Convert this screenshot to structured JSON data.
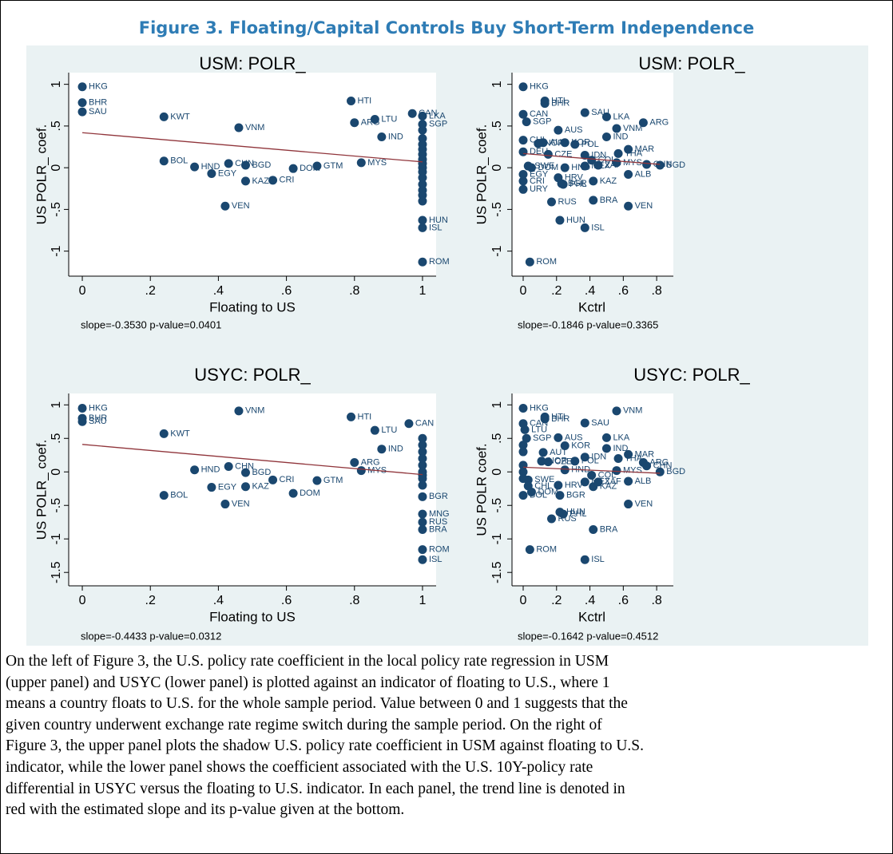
{
  "figure_title": "Figure 3. Floating/Capital Controls Buy Short-Term Independence",
  "caption": [
    "On the left of Figure 3, the U.S. policy rate coefficient in the local policy rate regression in USM",
    "(upper panel) and USYC (lower panel) is plotted against an indicator of floating to U.S., where 1",
    "means a country floats to U.S. for the whole sample period. Value between 0 and 1 suggests that the",
    "given country underwent exchange rate regime switch during the sample period. On the right of",
    "Figure 3, the upper panel plots the shadow U.S. policy rate coefficient in USM against floating to U.S.",
    "indicator, while the lower panel shows the coefficient associated with the U.S. 10Y-policy rate",
    "differential in USYC versus the floating to U.S. indicator. In each panel, the trend line is denoted in",
    "red with the estimated slope and its p-value given at the bottom."
  ],
  "chart_data": [
    {
      "type": "scatter",
      "title": "USM: POLR_",
      "xlabel": "Floating to US",
      "ylabel": "US POLR_ coef.",
      "note": "slope=-0.3530 p-value=0.0401",
      "color": "#1a476f",
      "trend_color": "#90353b",
      "xlim": [
        -0.04,
        1.04
      ],
      "ylim": [
        -1.3,
        1.14
      ],
      "xticks": [
        0,
        {
          "value": 0.2,
          "label": ".2"
        },
        {
          "value": 0.4,
          "label": ".4"
        },
        {
          "value": 0.6,
          "label": ".6"
        },
        {
          "value": 0.8,
          "label": ".8"
        },
        1
      ],
      "yticks": [
        1,
        {
          "value": 0.5,
          "label": ".5"
        },
        0,
        {
          "value": -0.5,
          "label": "-.5"
        },
        -1
      ],
      "x": [
        0,
        0,
        0,
        0.24,
        0.46,
        0.79,
        0.8,
        0.86,
        0.97,
        0.88,
        0.24,
        0.33,
        0.38,
        0.43,
        0.48,
        0.48,
        0.56,
        0.62,
        0.69,
        0.82,
        0.42,
        1,
        1,
        1,
        1,
        1,
        1,
        1,
        1,
        1,
        1,
        1,
        1,
        1,
        1,
        1,
        1,
        1,
        1,
        1
      ],
      "values": [
        0.97,
        0.78,
        0.67,
        0.61,
        0.48,
        0.8,
        0.54,
        0.58,
        0.65,
        0.37,
        0.08,
        0.01,
        -0.07,
        0.05,
        0.03,
        -0.16,
        -0.15,
        -0.01,
        0.02,
        0.06,
        -0.46,
        0.62,
        0.52,
        -0.63,
        -0.72,
        -1.13,
        0.45,
        0.35,
        0.28,
        0.22,
        0.16,
        0.1,
        0.05,
        0,
        -0.05,
        -0.12,
        -0.2,
        -0.27,
        -0.33,
        -0.4
      ],
      "labels": [
        "HKG",
        "BHR",
        "SAU",
        "KWT",
        "VNM",
        "HTI",
        "ARG",
        "LTU",
        "CAN",
        "IND",
        "BOL",
        "HND",
        "EGY",
        "CHN",
        "BGD",
        "KAZ",
        "CRI",
        "DOM",
        "GTM",
        "MYS",
        "VEN",
        "LKA",
        "SGP",
        "HUN",
        "ISL",
        "ROM",
        null,
        null,
        null,
        null,
        null,
        null,
        null,
        null,
        null,
        null,
        null,
        null,
        null,
        null
      ],
      "trend": {
        "x": [
          0,
          1
        ],
        "values": [
          0.42,
          0.07
        ]
      }
    },
    {
      "type": "scatter",
      "title": "USM: POLR_",
      "xlabel": "Kctrl",
      "ylabel": "US POLR_ coef.",
      "note": "slope=-0.1846 p-value=0.3365",
      "color": "#1a476f",
      "trend_color": "#90353b",
      "xlim": [
        -0.067,
        0.9
      ],
      "ylim": [
        -1.3,
        1.14
      ],
      "xticks": [
        0,
        {
          "value": 0.2,
          "label": ".2"
        },
        {
          "value": 0.4,
          "label": ".4"
        },
        {
          "value": 0.6,
          "label": ".6"
        },
        {
          "value": 0.8,
          "label": ".8"
        }
      ],
      "yticks": [
        1,
        {
          "value": 0.5,
          "label": ".5"
        },
        0,
        {
          "value": -0.5,
          "label": "-.5"
        },
        -1
      ],
      "x": [
        0,
        0.13,
        0.13,
        0,
        0.02,
        0.37,
        0.5,
        0.72,
        0.56,
        0.21,
        0.5,
        0.12,
        0.25,
        0.31,
        0.63,
        0.57,
        0.15,
        0.37,
        0.41,
        0.45,
        0.56,
        0.74,
        0.82,
        0.37,
        0.25,
        0.63,
        0.05,
        0.03,
        0.21,
        0.23,
        0.24,
        0.42,
        0.17,
        0.42,
        0.63,
        0.22,
        0.37,
        0.04,
        0,
        0,
        0,
        0,
        0,
        0.09
      ],
      "values": [
        0.97,
        0.8,
        0.77,
        0.64,
        0.55,
        0.66,
        0.61,
        0.54,
        0.47,
        0.45,
        0.37,
        0.3,
        0.3,
        0.28,
        0.22,
        0.17,
        0.16,
        0.15,
        0.09,
        0.03,
        0.06,
        0.04,
        0.03,
        0.02,
        0,
        -0.08,
        0,
        0.02,
        -0.12,
        -0.19,
        -0.2,
        -0.16,
        -0.41,
        -0.39,
        -0.46,
        -0.63,
        -0.72,
        -1.13,
        -0.26,
        -0.16,
        -0.08,
        0.33,
        0.19,
        0.29
      ],
      "labels": [
        "HKG",
        "HTI",
        "BHR",
        "CAN",
        "SGP",
        "SAU",
        "LKA",
        "ARG",
        "VNM",
        "AUS",
        "IND",
        "AUT",
        "KOR",
        "POL",
        "MAR",
        "THA",
        "CZE",
        "IDN",
        "COL",
        "ZAF",
        "MYS",
        "CHN",
        "BGD",
        "MEX",
        "HND",
        "ALB",
        "DOM",
        "SWE",
        "HRV",
        "BGR",
        "PHL",
        "KAZ",
        "RUS",
        "BRA",
        "VEN",
        "HUN",
        "ISL",
        "ROM",
        "URY",
        "CRI",
        "EGY",
        "CHL",
        "DEU",
        "NOR"
      ],
      "trend": {
        "x": [
          0,
          0.82
        ],
        "values": [
          0.17,
          0.04
        ]
      }
    },
    {
      "type": "scatter",
      "title": "USYC: POLR_",
      "xlabel": "Floating to US",
      "ylabel": "US POLR_ coef.",
      "note": "slope=-0.4433 p-value=0.0312",
      "color": "#1a476f",
      "trend_color": "#90353b",
      "xlim": [
        -0.04,
        1.04
      ],
      "ylim": [
        -1.7,
        1.17
      ],
      "xticks": [
        0,
        {
          "value": 0.2,
          "label": ".2"
        },
        {
          "value": 0.4,
          "label": ".4"
        },
        {
          "value": 0.6,
          "label": ".6"
        },
        {
          "value": 0.8,
          "label": ".8"
        },
        1
      ],
      "yticks": [
        1,
        {
          "value": 0.5,
          "label": ".5"
        },
        0,
        {
          "value": -0.5,
          "label": "-.5"
        },
        -1,
        {
          "value": -1.5,
          "label": "-1.5"
        }
      ],
      "x": [
        0,
        0,
        0,
        0.46,
        0.79,
        0.96,
        0.86,
        0.24,
        0.88,
        0.8,
        0.82,
        0.43,
        0.33,
        0.48,
        0.56,
        0.69,
        0.38,
        0.48,
        0.62,
        0.24,
        0.42,
        1,
        1,
        1,
        1,
        1,
        1,
        1,
        1,
        1,
        1,
        1,
        1,
        1,
        1,
        1
      ],
      "values": [
        0.95,
        0.8,
        0.75,
        0.91,
        0.82,
        0.72,
        0.62,
        0.57,
        0.34,
        0.14,
        0.02,
        0.08,
        0.03,
        -0.01,
        -0.12,
        -0.13,
        -0.23,
        -0.22,
        -0.32,
        -0.35,
        -0.48,
        -0.37,
        -0.63,
        -0.75,
        -0.86,
        -1.16,
        -1.31,
        0.5,
        0.4,
        0.3,
        0.2,
        0.1,
        0,
        -0.05,
        -0.1,
        -0.2
      ],
      "labels": [
        "HKG",
        "BHR",
        "SAU",
        "VNM",
        "HTI",
        "CAN",
        "LTU",
        "KWT",
        "IND",
        "ARG",
        "MYS",
        "CHN",
        "HND",
        "BGD",
        "CRI",
        "GTM",
        "EGY",
        "KAZ",
        "DOM",
        "BOL",
        "VEN",
        "BGR",
        "MNG",
        "RUS",
        "BRA",
        "ROM",
        "ISL",
        null,
        null,
        null,
        null,
        null,
        null,
        null,
        null,
        null
      ],
      "trend": {
        "x": [
          0,
          1
        ],
        "values": [
          0.41,
          -0.04
        ]
      }
    },
    {
      "type": "scatter",
      "title": "USYC: POLR_",
      "xlabel": "Kctrl",
      "ylabel": "US POLR coef.",
      "note": "slope=-0.1642 p-value=0.4512",
      "color": "#1a476f",
      "trend_color": "#90353b",
      "xlim": [
        -0.067,
        0.9
      ],
      "ylim": [
        -1.7,
        1.17
      ],
      "xticks": [
        0,
        {
          "value": 0.2,
          "label": ".2"
        },
        {
          "value": 0.4,
          "label": ".4"
        },
        {
          "value": 0.6,
          "label": ".6"
        },
        {
          "value": 0.8,
          "label": ".8"
        }
      ],
      "yticks": [
        1,
        {
          "value": 0.5,
          "label": ".5"
        },
        0,
        {
          "value": -0.5,
          "label": "-.5"
        },
        -1,
        {
          "value": -1.5,
          "label": "-1.5"
        }
      ],
      "x": [
        0,
        0.13,
        0.13,
        0.56,
        0.37,
        0,
        0.01,
        0.02,
        0.21,
        0.5,
        0.25,
        0.5,
        0.12,
        0.63,
        0.57,
        0.37,
        0.31,
        0.11,
        0.15,
        0.72,
        0.74,
        0.82,
        0.25,
        0.56,
        0.41,
        0.37,
        0.45,
        0.42,
        0.63,
        0.03,
        0.03,
        0.21,
        0.05,
        0.22,
        0,
        0.22,
        0.24,
        0.17,
        0.42,
        0.63,
        0.04,
        0.37,
        0,
        0,
        0,
        0,
        0
      ],
      "values": [
        0.95,
        0.82,
        0.79,
        0.91,
        0.73,
        0.72,
        0.63,
        0.5,
        0.51,
        0.51,
        0.39,
        0.35,
        0.29,
        0.26,
        0.2,
        0.22,
        0.16,
        0.16,
        0.15,
        0.14,
        0.09,
        0,
        0.03,
        0.02,
        -0.05,
        -0.15,
        -0.15,
        -0.22,
        -0.14,
        -0.12,
        -0.21,
        -0.2,
        -0.3,
        -0.35,
        -0.35,
        -0.6,
        -0.63,
        -0.7,
        -0.86,
        -0.48,
        -1.16,
        -1.31,
        0.4,
        0.3,
        0.1,
        0,
        -0.1
      ],
      "labels": [
        "HKG",
        "HTI",
        "BHR",
        "VNM",
        "SAU",
        "CAN",
        "LTU",
        "SGP",
        "AUS",
        "LKA",
        "KOR",
        "IND",
        "AUT",
        "MAR",
        "THA",
        "IDN",
        "POL",
        "NOR",
        "CZE",
        "ARG",
        "CHN",
        "BGD",
        "HND",
        "MYS",
        "COL",
        "MEX",
        "ZAF",
        "KAZ",
        "ALB",
        "SWE",
        "CHL",
        "HRV",
        "DOM",
        "BGR",
        "BOL",
        "HUN",
        "PHL",
        "RUS",
        "BRA",
        "VEN",
        "ROM",
        "ISL",
        null,
        null,
        null,
        null,
        null
      ],
      "trend": {
        "x": [
          0,
          0.82
        ],
        "values": [
          0.07,
          -0.02
        ]
      }
    }
  ]
}
